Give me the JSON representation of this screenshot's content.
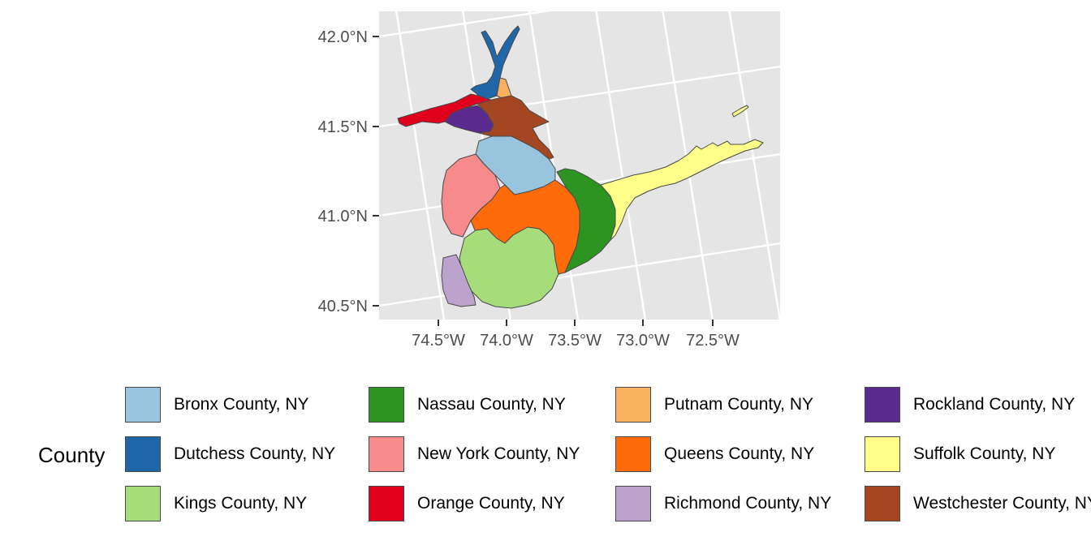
{
  "map": {
    "x_ticks": [
      "74.5°W",
      "74.0°W",
      "73.5°W",
      "73.0°W",
      "72.5°W"
    ],
    "y_ticks": [
      "42.0°N",
      "41.5°N",
      "41.0°N",
      "40.5°N"
    ],
    "panel_background": "#e5e5e5",
    "graticule_color": "#ffffff",
    "border_color": "#4a4a4a"
  },
  "legend": {
    "title": "County",
    "items": [
      {
        "label": "Bronx County, NY",
        "color": "#99c4dd"
      },
      {
        "label": "Dutchess County, NY",
        "color": "#1f67a9"
      },
      {
        "label": "Kings County, NY",
        "color": "#a6dc7a"
      },
      {
        "label": "Nassau County, NY",
        "color": "#2e9421"
      },
      {
        "label": "New York County, NY",
        "color": "#f78a8b"
      },
      {
        "label": "Orange County, NY",
        "color": "#e0001b"
      },
      {
        "label": "Putnam County, NY",
        "color": "#f9b05f"
      },
      {
        "label": "Queens County, NY",
        "color": "#ff6b0b"
      },
      {
        "label": "Richmond County, NY",
        "color": "#bca3cd"
      },
      {
        "label": "Rockland County, NY",
        "color": "#5b2a8e"
      },
      {
        "label": "Suffolk County, NY",
        "color": "#ffff8a"
      },
      {
        "label": "Westchester County, NY",
        "color": "#a44622"
      }
    ]
  }
}
